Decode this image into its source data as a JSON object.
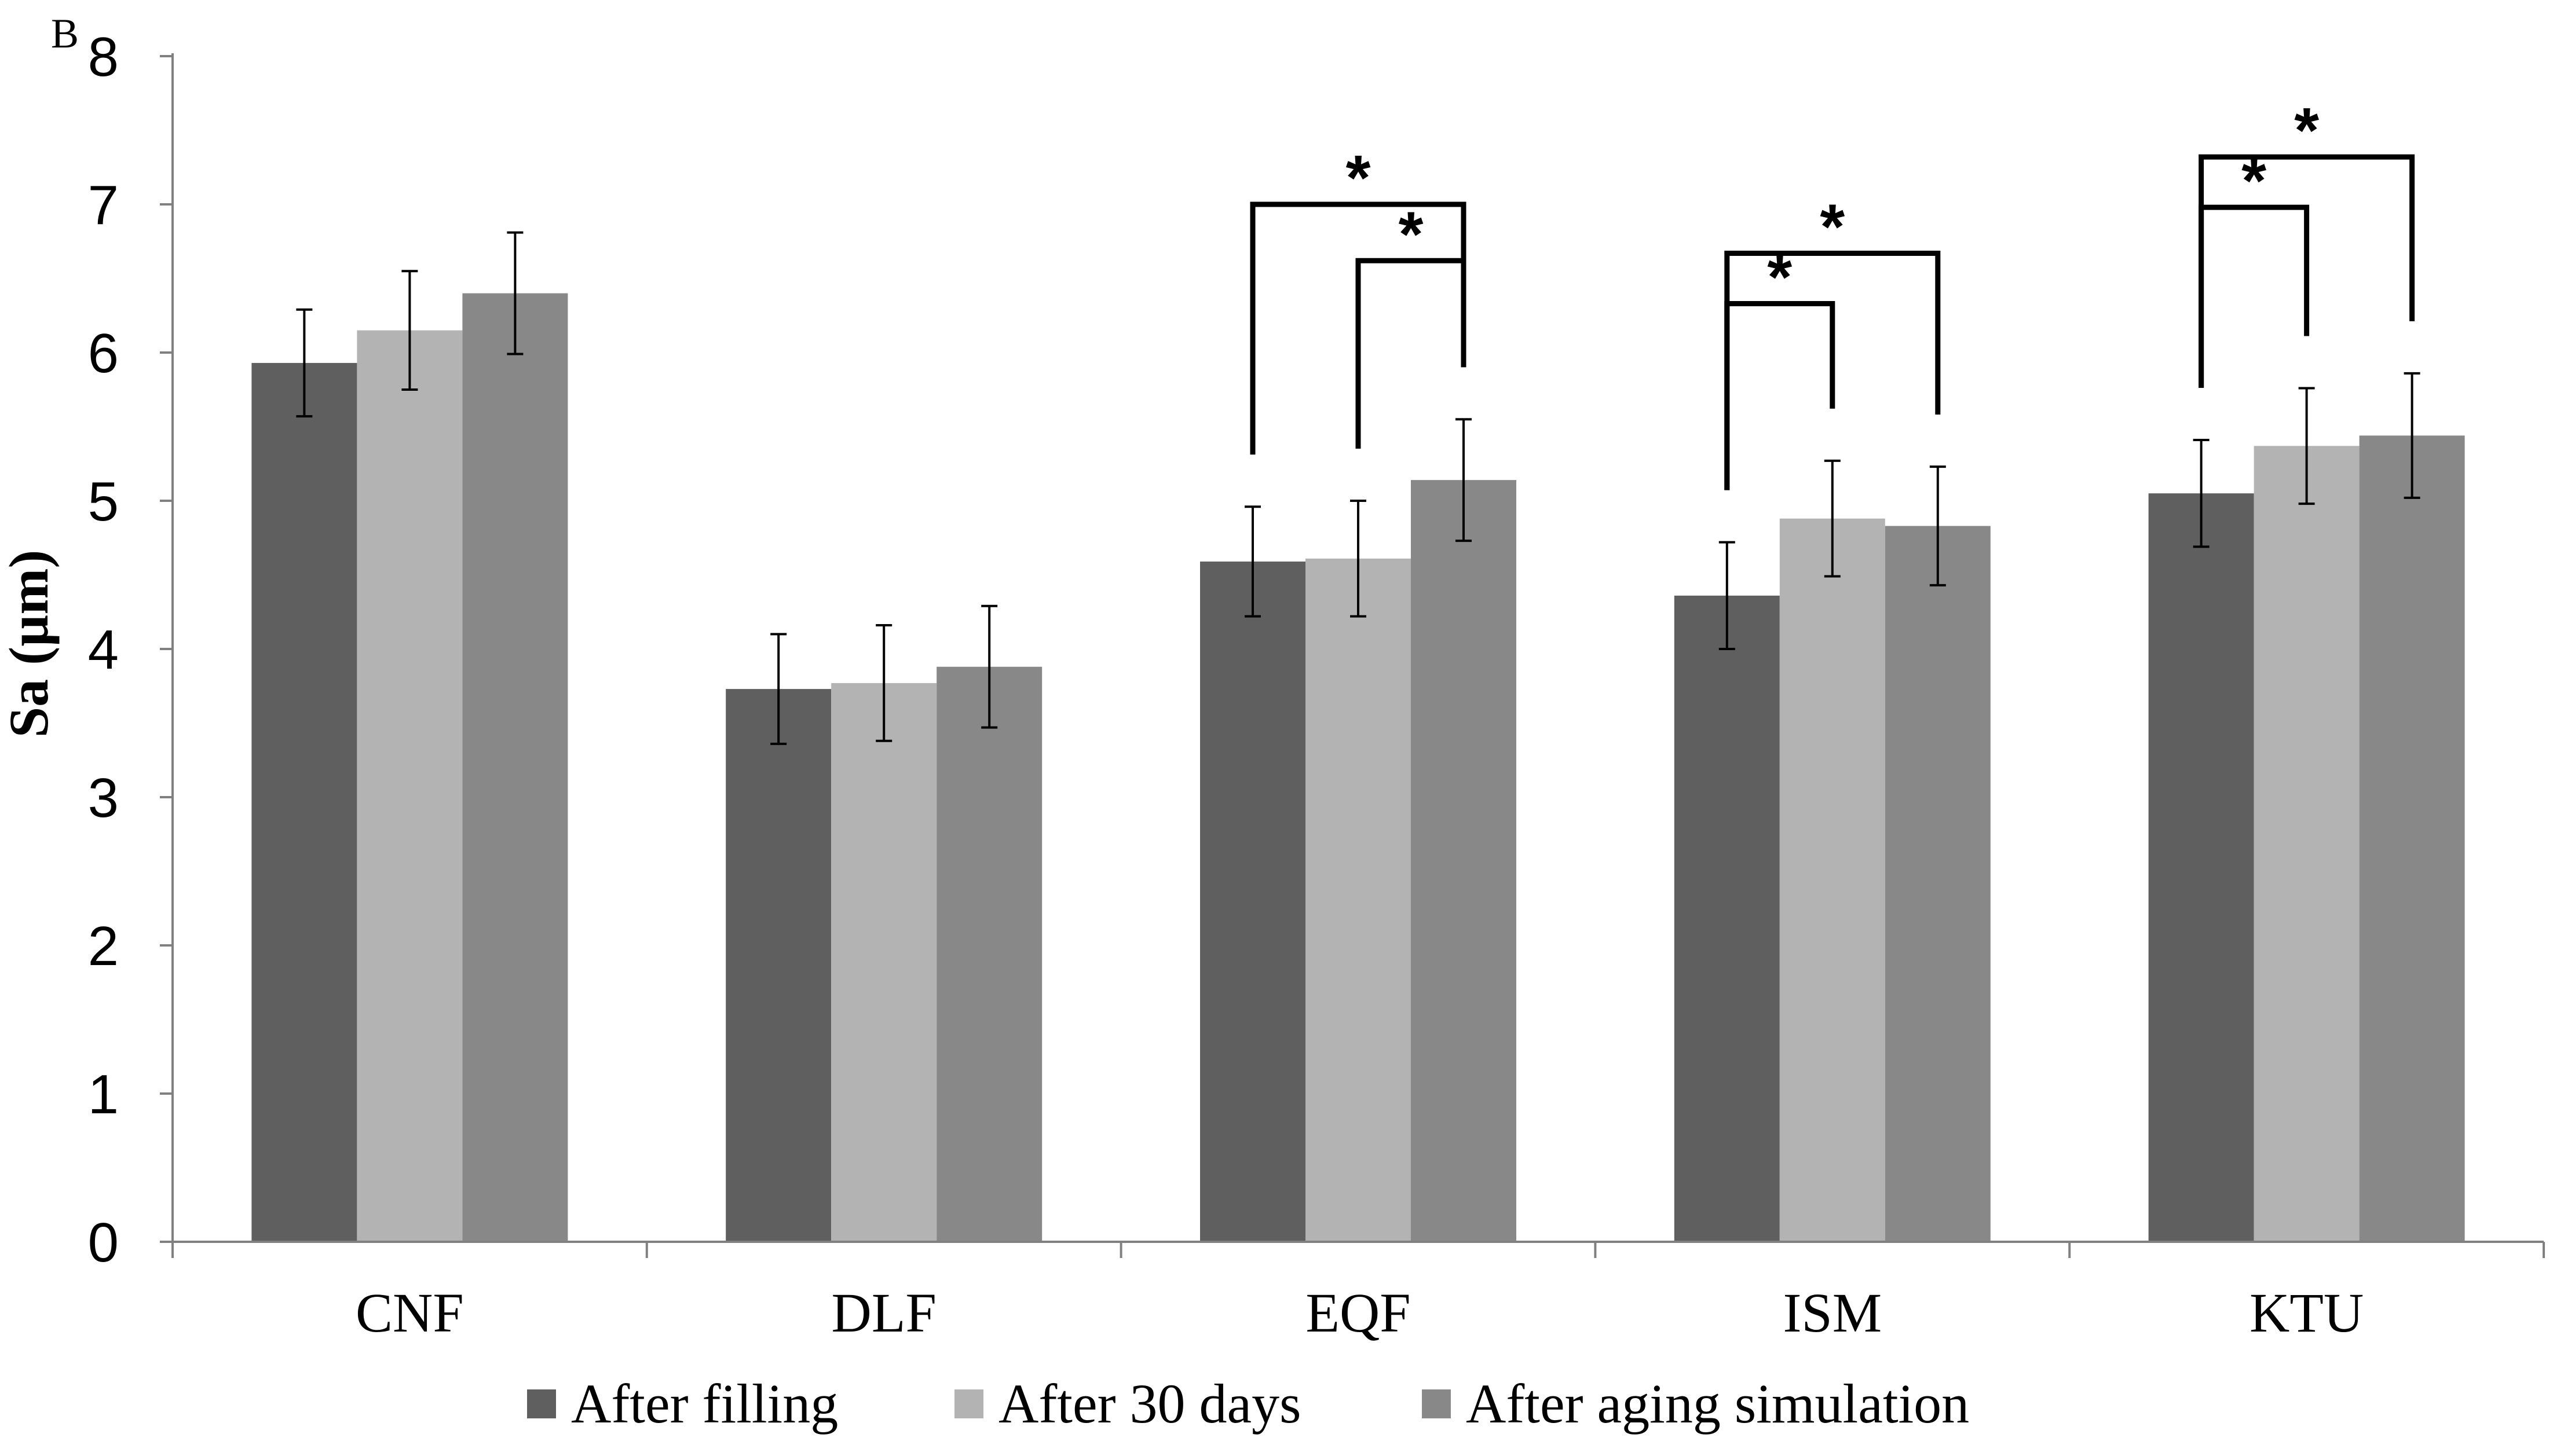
{
  "panel_label": "B",
  "chart_data": {
    "type": "bar",
    "title": "",
    "xlabel": "",
    "ylabel": "Sa (µm)",
    "ylim": [
      0,
      8
    ],
    "yticks": [
      0,
      1,
      2,
      3,
      4,
      5,
      6,
      7,
      8
    ],
    "grid": false,
    "legend_position": "bottom",
    "categories": [
      "CNF",
      "DLF",
      "EQF",
      "ISM",
      "KTU"
    ],
    "series": [
      {
        "name": "After filling",
        "color": "#5f5f5f",
        "values": [
          5.93,
          3.73,
          4.59,
          4.36,
          5.05
        ],
        "errors": [
          0.36,
          0.37,
          0.37,
          0.36,
          0.36
        ]
      },
      {
        "name": "After 30 days",
        "color": "#b3b3b3",
        "values": [
          6.15,
          3.77,
          4.61,
          4.88,
          5.37
        ],
        "errors": [
          0.4,
          0.39,
          0.39,
          0.39,
          0.39
        ]
      },
      {
        "name": "After aging simulation",
        "color": "#888888",
        "values": [
          6.4,
          3.88,
          5.14,
          4.83,
          5.44
        ],
        "errors": [
          0.41,
          0.41,
          0.41,
          0.4,
          0.42
        ]
      }
    ],
    "significance": [
      {
        "category": "EQF",
        "from_series": 0,
        "to_series": 2,
        "level": 7.0,
        "label": "*"
      },
      {
        "category": "EQF",
        "from_series": 1,
        "to_series": 2,
        "level": 6.62,
        "label": "*"
      },
      {
        "category": "ISM",
        "from_series": 0,
        "to_series": 2,
        "level": 6.67,
        "label": "*"
      },
      {
        "category": "ISM",
        "from_series": 0,
        "to_series": 1,
        "level": 6.33,
        "label": "*"
      },
      {
        "category": "KTU",
        "from_series": 0,
        "to_series": 2,
        "level": 7.32,
        "label": "*"
      },
      {
        "category": "KTU",
        "from_series": 0,
        "to_series": 1,
        "level": 6.98,
        "label": "*"
      }
    ]
  }
}
